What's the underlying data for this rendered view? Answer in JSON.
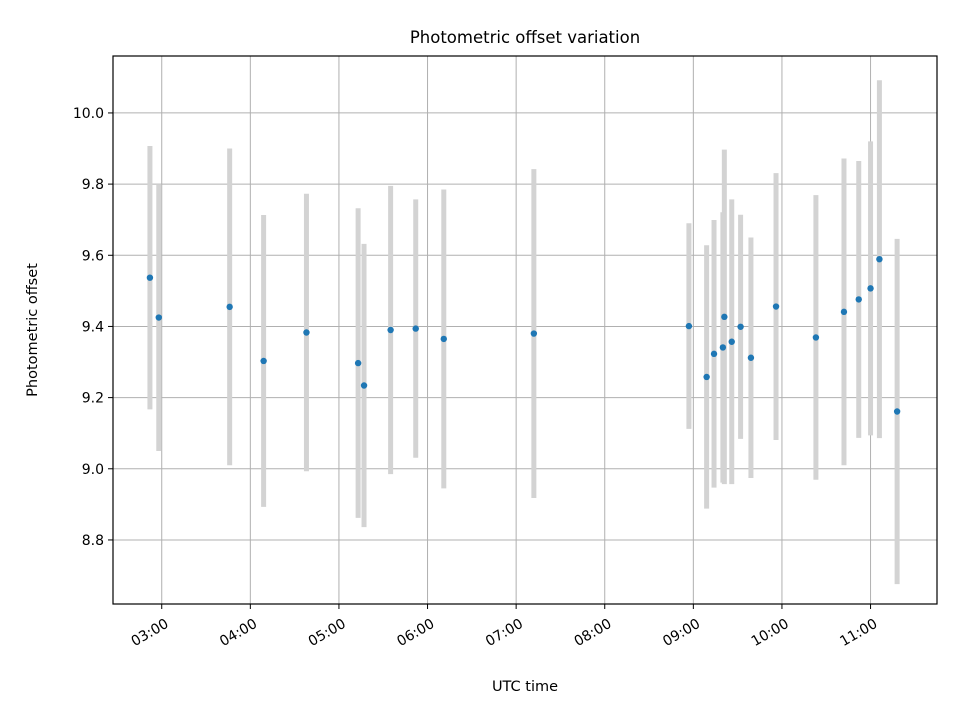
{
  "chart_data": {
    "type": "scatter",
    "title": "Photometric offset variation",
    "xlabel": "UTC time",
    "ylabel": "Photometric offset",
    "x_ticks": [
      "03:00",
      "04:00",
      "05:00",
      "06:00",
      "07:00",
      "08:00",
      "09:00",
      "10:00",
      "11:00"
    ],
    "y_ticks": [
      "8.8",
      "9.0",
      "9.2",
      "9.4",
      "9.6",
      "9.8",
      "10.0"
    ],
    "xlim": [
      "02:27",
      "11:45"
    ],
    "ylim": [
      8.62,
      10.16
    ],
    "grid": true,
    "colors": {
      "point": "#1f77b4",
      "errorbar": "#d3d3d3",
      "grid": "#b0b0b0"
    },
    "series": [
      {
        "points": [
          {
            "x": "02:52",
            "y": 9.537,
            "err": 0.37
          },
          {
            "x": "02:58",
            "y": 9.425,
            "err": 0.375
          },
          {
            "x": "03:46",
            "y": 9.455,
            "err": 0.445
          },
          {
            "x": "04:09",
            "y": 9.303,
            "err": 0.41
          },
          {
            "x": "04:38",
            "y": 9.383,
            "err": 0.39
          },
          {
            "x": "05:13",
            "y": 9.297,
            "err": 0.435
          },
          {
            "x": "05:17",
            "y": 9.234,
            "err": 0.398
          },
          {
            "x": "05:35",
            "y": 9.39,
            "err": 0.405
          },
          {
            "x": "05:52",
            "y": 9.394,
            "err": 0.363
          },
          {
            "x": "06:11",
            "y": 9.365,
            "err": 0.42
          },
          {
            "x": "07:12",
            "y": 9.38,
            "err": 0.462
          },
          {
            "x": "08:57",
            "y": 9.401,
            "err": 0.289
          },
          {
            "x": "09:09",
            "y": 9.258,
            "err": 0.37
          },
          {
            "x": "09:14",
            "y": 9.323,
            "err": 0.376
          },
          {
            "x": "09:20",
            "y": 9.341,
            "err": 0.38
          },
          {
            "x": "09:21",
            "y": 9.427,
            "err": 0.47
          },
          {
            "x": "09:26",
            "y": 9.357,
            "err": 0.4
          },
          {
            "x": "09:32",
            "y": 9.399,
            "err": 0.315
          },
          {
            "x": "09:39",
            "y": 9.312,
            "err": 0.338
          },
          {
            "x": "09:56",
            "y": 9.456,
            "err": 0.375
          },
          {
            "x": "10:23",
            "y": 9.369,
            "err": 0.4
          },
          {
            "x": "10:42",
            "y": 9.441,
            "err": 0.431
          },
          {
            "x": "10:52",
            "y": 9.476,
            "err": 0.389
          },
          {
            "x": "11:00",
            "y": 9.507,
            "err": 0.413
          },
          {
            "x": "11:06",
            "y": 9.589,
            "err": 0.503
          },
          {
            "x": "11:18",
            "y": 9.161,
            "err": 0.485
          }
        ]
      }
    ]
  }
}
